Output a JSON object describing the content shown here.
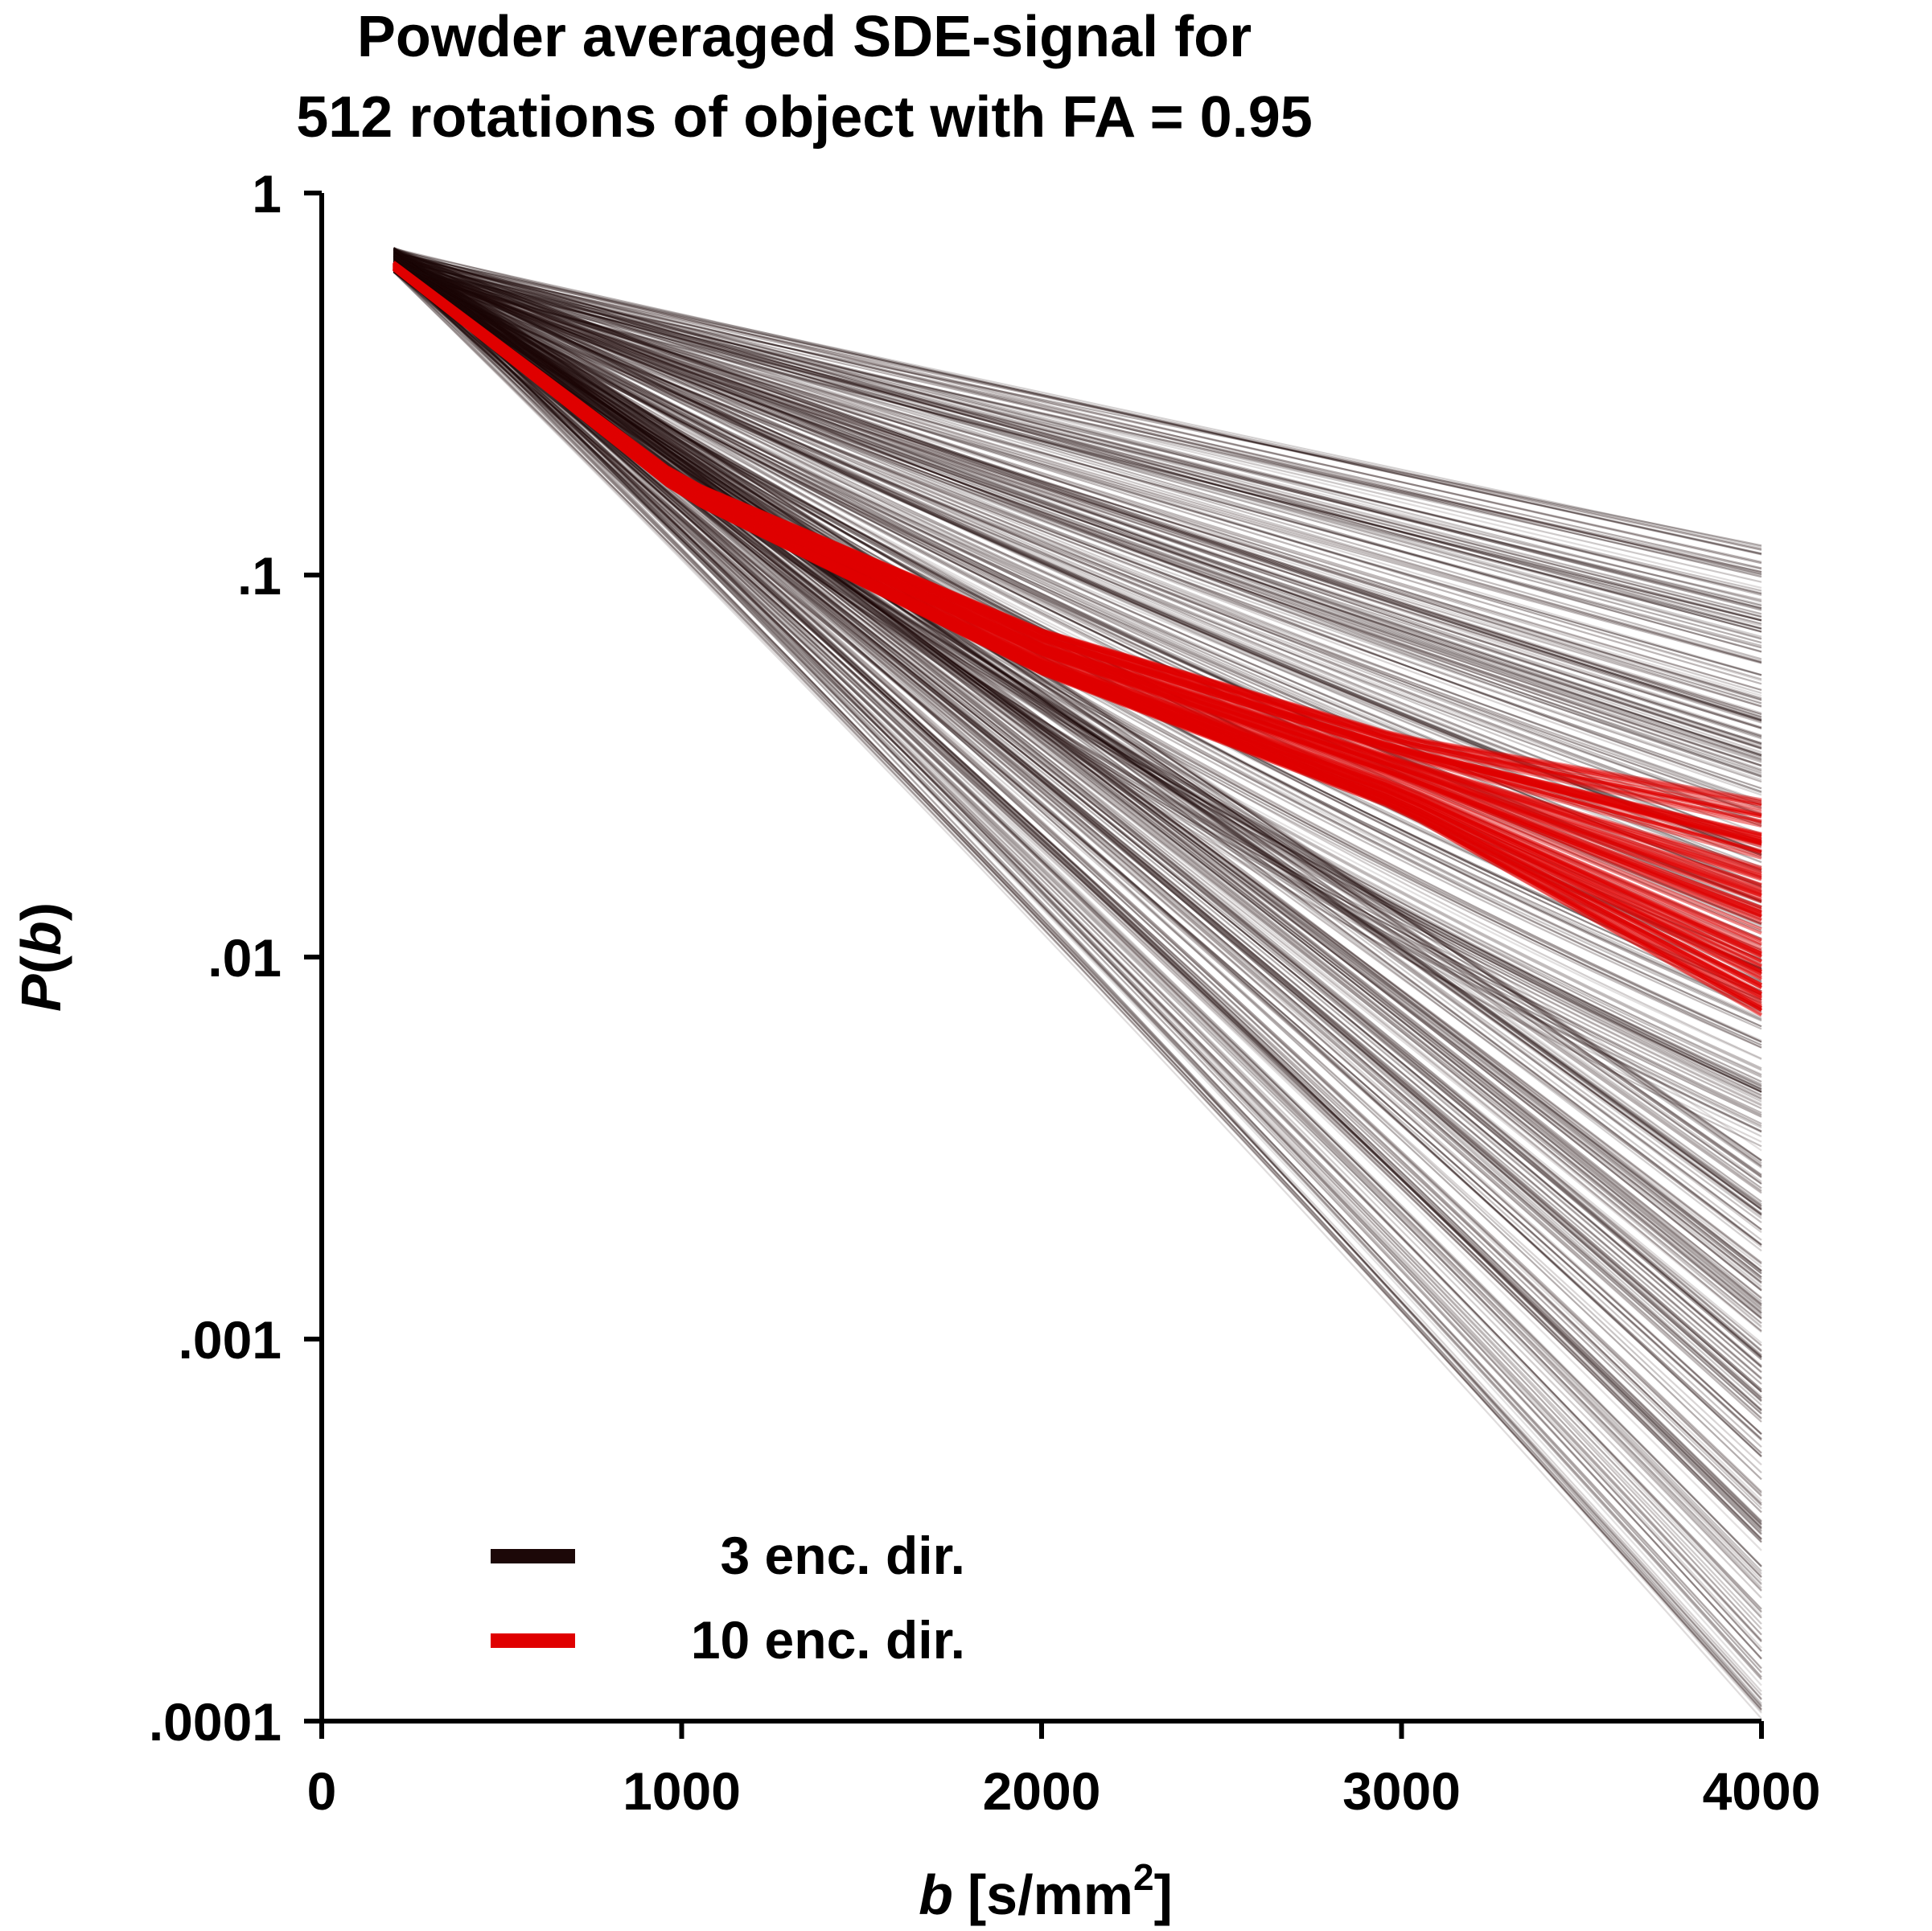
{
  "chart_data": {
    "type": "line",
    "title_lines": [
      "Powder averaged SDE-signal for",
      "512 rotations of object with FA = 0.95"
    ],
    "xlabel_var": "b",
    "xlabel_unit_pre": "[s/mm",
    "xlabel_unit_sup": "2",
    "xlabel_unit_post": "]",
    "ylabel_var": "P",
    "ylabel_open": "(",
    "ylabel_arg": "b",
    "ylabel_close": ")",
    "x_scale": "linear",
    "y_scale": "log",
    "xlim": [
      0,
      4000
    ],
    "ylim": [
      0.0001,
      1
    ],
    "xticks": [
      0,
      1000,
      2000,
      3000,
      4000
    ],
    "xtick_labels": [
      "0",
      "1000",
      "2000",
      "3000",
      "4000"
    ],
    "yticks": [
      1,
      0.1,
      0.01,
      0.001,
      0.0001
    ],
    "ytick_labels": [
      "1",
      ".1",
      ".01",
      ".001",
      ".0001"
    ],
    "grid": false,
    "legend_position": "bottom-left",
    "series": [
      {
        "name": "3 enc. dir.",
        "color": "#1c0808",
        "rotations": 512,
        "x": [
          200,
          4000
        ],
        "y_start_range": [
          0.62,
          0.72
        ],
        "y_end_range": [
          0.0001,
          0.12
        ]
      },
      {
        "name": "10 enc. dir.",
        "color": "#e00000",
        "rotations": 512,
        "x": [
          200,
          1000,
          2000,
          3000,
          4000
        ],
        "y_upper": [
          0.66,
          0.18,
          0.072,
          0.038,
          0.026
        ],
        "y_lower": [
          0.63,
          0.16,
          0.055,
          0.024,
          0.007
        ]
      }
    ]
  }
}
